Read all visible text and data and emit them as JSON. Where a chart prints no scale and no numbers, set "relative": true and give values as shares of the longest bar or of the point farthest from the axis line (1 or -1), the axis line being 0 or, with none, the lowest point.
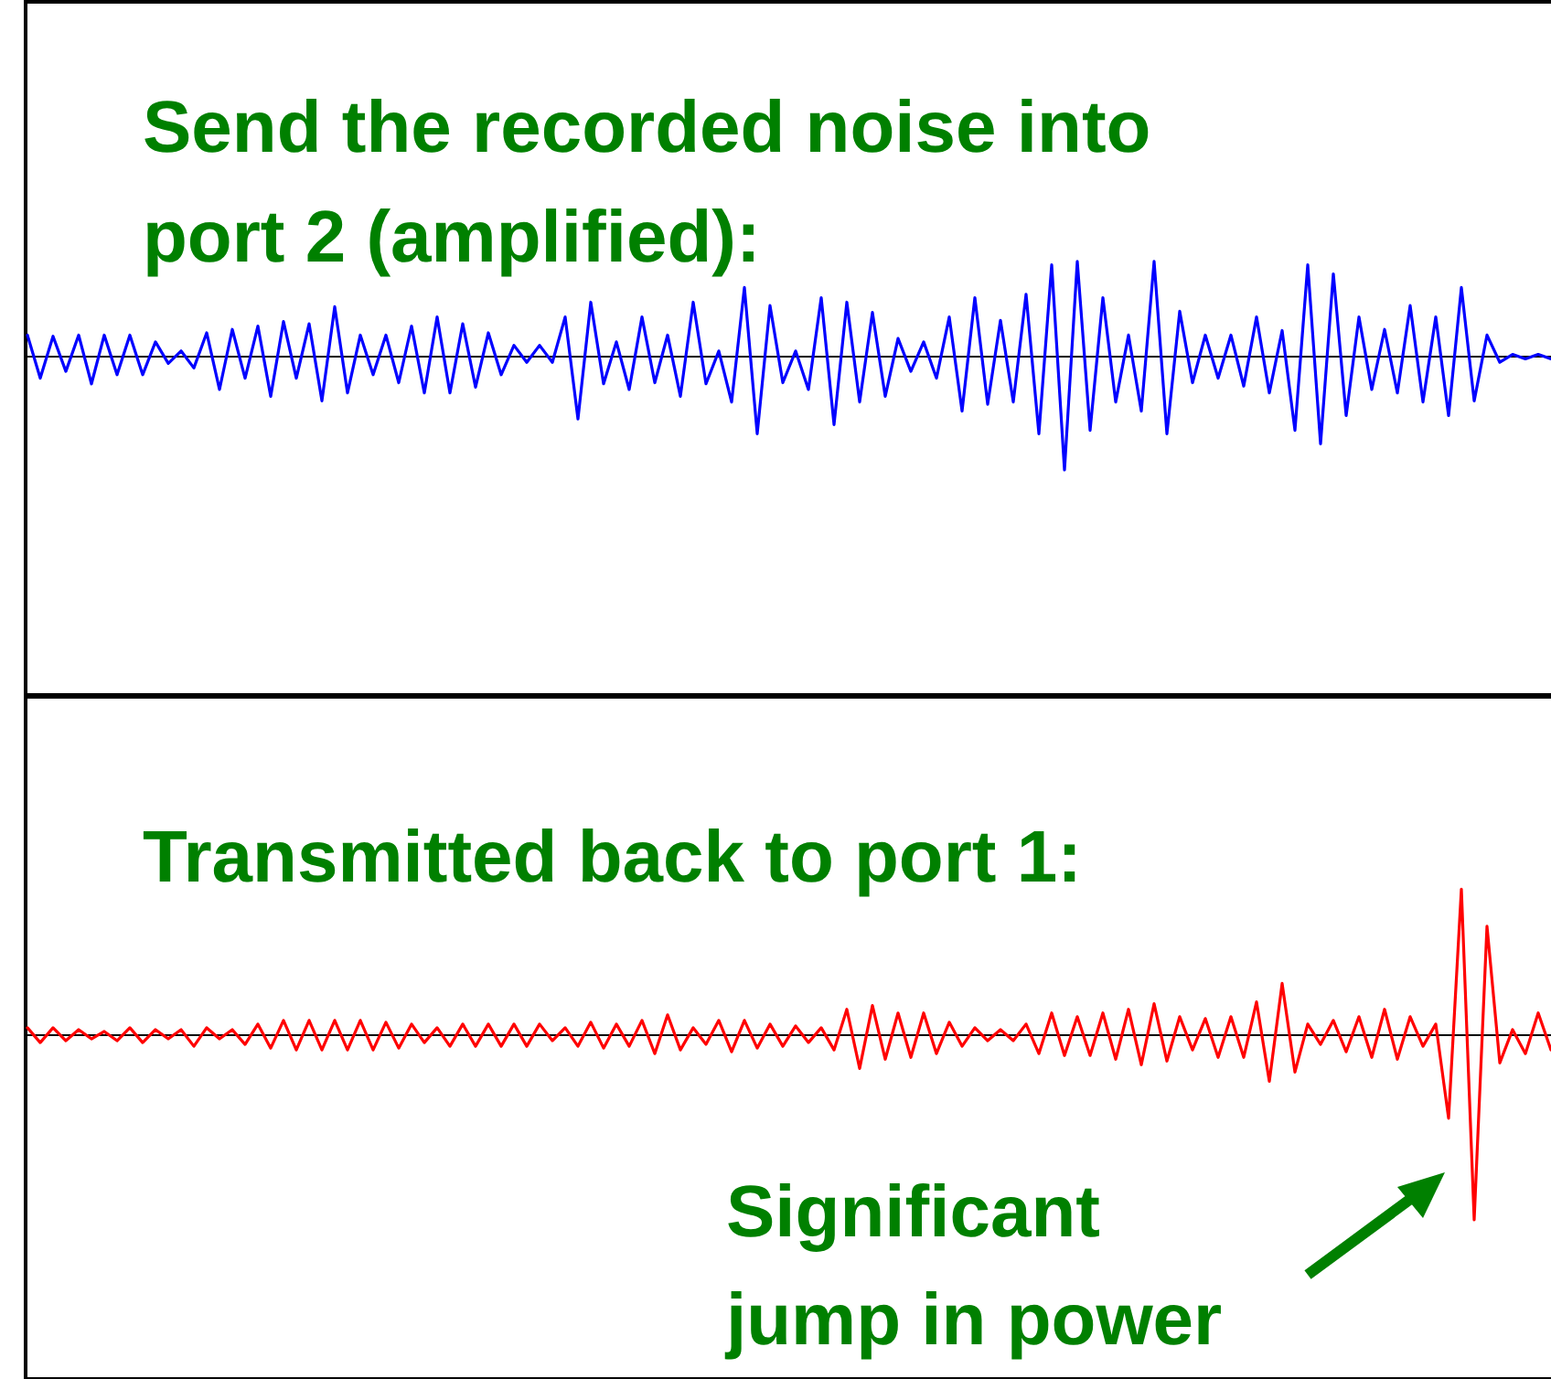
{
  "chart_data": [
    {
      "type": "line",
      "relative": true,
      "annotations": [
        "Send the recorded noise into\nport 2 (amplified):"
      ],
      "categories": [
        null,
        null,
        null,
        null,
        null,
        null,
        null,
        null,
        null,
        null,
        null,
        null,
        null,
        null,
        null,
        null,
        null,
        null,
        null,
        null,
        null,
        null,
        null,
        null,
        null,
        null,
        null,
        null,
        null,
        null,
        null,
        null,
        null,
        null,
        null,
        null,
        null,
        null,
        null,
        null,
        null,
        null,
        null,
        null,
        null,
        null,
        null,
        null,
        null,
        null,
        null,
        null,
        null,
        null,
        null,
        null,
        null,
        null,
        null,
        null,
        null,
        null,
        null,
        null,
        null,
        null,
        null,
        null,
        null,
        null,
        null,
        null,
        null,
        null,
        null,
        null,
        null,
        null,
        null,
        null,
        null,
        null,
        null,
        null,
        null,
        null,
        null,
        null,
        null,
        null,
        null,
        null,
        null,
        null,
        null,
        null,
        null,
        null,
        null,
        null,
        null,
        null,
        null,
        null,
        null,
        null,
        null,
        null,
        null,
        null,
        null,
        null,
        null,
        null,
        null,
        null,
        null,
        null,
        null,
        null
      ],
      "series": [
        {
          "color": "#0000ff",
          "values": [
            0.19,
            -0.19,
            0.18,
            -0.13,
            0.19,
            -0.24,
            0.19,
            -0.16,
            0.19,
            -0.16,
            0.13,
            -0.06,
            0.05,
            -0.1,
            0.21,
            -0.29,
            0.24,
            -0.19,
            0.27,
            -0.35,
            0.31,
            -0.19,
            0.29,
            -0.39,
            0.44,
            -0.32,
            0.19,
            -0.16,
            0.19,
            -0.23,
            0.27,
            -0.32,
            0.35,
            -0.32,
            0.29,
            -0.27,
            0.21,
            -0.16,
            0.1,
            -0.05,
            0.1,
            -0.05,
            0.35,
            -0.55,
            0.48,
            -0.24,
            0.13,
            -0.29,
            0.35,
            -0.23,
            0.19,
            -0.35,
            0.48,
            -0.24,
            0.05,
            -0.4,
            0.61,
            -0.68,
            0.45,
            -0.23,
            0.05,
            -0.29,
            0.52,
            -0.6,
            0.48,
            -0.4,
            0.39,
            -0.35,
            0.16,
            -0.13,
            0.13,
            -0.19,
            0.35,
            -0.48,
            0.52,
            -0.42,
            0.32,
            -0.4,
            0.55,
            -0.68,
            0.81,
            -1,
            0.84,
            -0.65,
            0.52,
            -0.4,
            0.19,
            -0.48,
            0.84,
            -0.68,
            0.4,
            -0.23,
            0.19,
            -0.19,
            0.19,
            -0.26,
            0.35,
            -0.32,
            0.23,
            -0.65,
            0.81,
            -0.77,
            0.73,
            -0.52,
            0.35,
            -0.29,
            0.24,
            -0.32,
            0.45,
            -0.4,
            0.35,
            -0.52,
            0.61,
            -0.39,
            0.19,
            -0.05,
            0.02,
            -0.02,
            0.02,
            -0.02
          ]
        }
      ]
    },
    {
      "type": "line",
      "relative": true,
      "annotations": [
        "Transmitted back to port 1:",
        "Significant\njump in power"
      ],
      "categories": [
        null,
        null,
        null,
        null,
        null,
        null,
        null,
        null,
        null,
        null,
        null,
        null,
        null,
        null,
        null,
        null,
        null,
        null,
        null,
        null,
        null,
        null,
        null,
        null,
        null,
        null,
        null,
        null,
        null,
        null,
        null,
        null,
        null,
        null,
        null,
        null,
        null,
        null,
        null,
        null,
        null,
        null,
        null,
        null,
        null,
        null,
        null,
        null,
        null,
        null,
        null,
        null,
        null,
        null,
        null,
        null,
        null,
        null,
        null,
        null,
        null,
        null,
        null,
        null,
        null,
        null,
        null,
        null,
        null,
        null,
        null,
        null,
        null,
        null,
        null,
        null,
        null,
        null,
        null,
        null,
        null,
        null,
        null,
        null,
        null,
        null,
        null,
        null,
        null,
        null,
        null,
        null,
        null,
        null,
        null,
        null,
        null,
        null,
        null,
        null,
        null,
        null,
        null,
        null,
        null,
        null,
        null,
        null,
        null,
        null,
        null,
        null,
        null,
        null,
        null,
        null,
        null,
        null,
        null,
        null
      ],
      "series": [
        {
          "color": "#ff0000",
          "values": [
            0.04,
            -0.04,
            0.04,
            -0.03,
            0.03,
            -0.02,
            0.02,
            -0.03,
            0.04,
            -0.04,
            0.03,
            -0.02,
            0.03,
            -0.06,
            0.04,
            -0.02,
            0.03,
            -0.05,
            0.06,
            -0.07,
            0.08,
            -0.08,
            0.08,
            -0.08,
            0.08,
            -0.08,
            0.08,
            -0.08,
            0.07,
            -0.07,
            0.06,
            -0.04,
            0.04,
            -0.06,
            0.06,
            -0.06,
            0.06,
            -0.06,
            0.06,
            -0.06,
            0.06,
            -0.03,
            0.04,
            -0.06,
            0.07,
            -0.07,
            0.06,
            -0.06,
            0.08,
            -0.1,
            0.11,
            -0.08,
            0.04,
            -0.05,
            0.08,
            -0.09,
            0.08,
            -0.07,
            0.06,
            -0.06,
            0.05,
            -0.04,
            0.04,
            -0.08,
            0.14,
            -0.18,
            0.16,
            -0.13,
            0.12,
            -0.12,
            0.12,
            -0.1,
            0.07,
            -0.06,
            0.04,
            -0.03,
            0.03,
            -0.03,
            0.06,
            -0.1,
            0.12,
            -0.11,
            0.1,
            -0.11,
            0.12,
            -0.13,
            0.14,
            -0.16,
            0.17,
            -0.14,
            0.1,
            -0.08,
            0.09,
            -0.12,
            0.1,
            -0.12,
            0.18,
            -0.25,
            0.28,
            -0.2,
            0.06,
            -0.05,
            0.08,
            -0.09,
            0.1,
            -0.12,
            0.14,
            -0.13,
            0.1,
            -0.06,
            0.06,
            -0.45,
            0.79,
            -1,
            0.59,
            -0.15,
            0.03,
            -0.1,
            0.12,
            -0.08
          ]
        }
      ]
    }
  ]
}
